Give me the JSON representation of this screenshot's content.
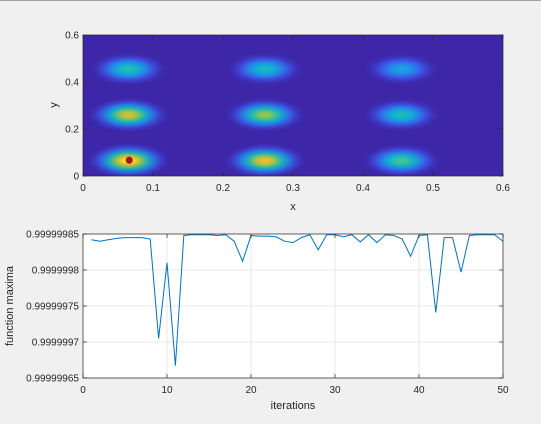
{
  "chart_data": [
    {
      "type": "heatmap",
      "title": "",
      "xlabel": "x",
      "ylabel": "y",
      "xlim": [
        0,
        0.6
      ],
      "ylim": [
        0,
        0.6
      ],
      "xticks": [
        "0",
        "0.1",
        "0.2",
        "0.3",
        "0.4",
        "0.5",
        "0.6"
      ],
      "yticks": [
        "0",
        "0.2",
        "0.4",
        "0.6"
      ],
      "peaks": [
        {
          "x": 0.065,
          "y": 0.065,
          "amplitude": 1.0
        },
        {
          "x": 0.065,
          "y": 0.26,
          "amplitude": 0.85
        },
        {
          "x": 0.065,
          "y": 0.455,
          "amplitude": 0.55
        },
        {
          "x": 0.26,
          "y": 0.065,
          "amplitude": 0.9
        },
        {
          "x": 0.26,
          "y": 0.26,
          "amplitude": 0.75
        },
        {
          "x": 0.26,
          "y": 0.455,
          "amplitude": 0.5
        },
        {
          "x": 0.455,
          "y": 0.065,
          "amplitude": 0.62
        },
        {
          "x": 0.455,
          "y": 0.26,
          "amplitude": 0.52
        },
        {
          "x": 0.455,
          "y": 0.455,
          "amplitude": 0.38
        }
      ],
      "marker": {
        "x": 0.066,
        "y": 0.067,
        "color": "#a2142f"
      },
      "colors": {
        "background": "#3d26a8",
        "peak": "#f9fb0e"
      }
    },
    {
      "type": "line",
      "title": "",
      "xlabel": "iterations",
      "ylabel": "function maxima",
      "xlim": [
        0,
        50
      ],
      "ylim": [
        0.99999965,
        0.99999985
      ],
      "xticks": [
        "0",
        "10",
        "20",
        "30",
        "40",
        "50"
      ],
      "yticks": [
        "0.99999985",
        "0.9999998",
        "0.99999975",
        "0.9999997",
        "0.99999965"
      ],
      "grid": true,
      "color": "#0072bd",
      "x": [
        1,
        2,
        3,
        4,
        5,
        6,
        7,
        8,
        9,
        10,
        11,
        12,
        13,
        14,
        15,
        16,
        17,
        18,
        19,
        20,
        21,
        22,
        23,
        24,
        25,
        26,
        27,
        28,
        29,
        30,
        31,
        32,
        33,
        34,
        35,
        36,
        37,
        38,
        39,
        40,
        41,
        42,
        43,
        44,
        45,
        46,
        47,
        48,
        49,
        50
      ],
      "y": [
        0.999999842,
        0.99999984,
        0.999999842,
        0.999999844,
        0.999999845,
        0.999999845,
        0.999999845,
        0.999999843,
        0.999999705,
        0.99999981,
        0.999999667,
        0.999999848,
        0.999999849,
        0.999999849,
        0.999999849,
        0.999999848,
        0.999999849,
        0.99999984,
        0.999999812,
        0.999999848,
        0.999999847,
        0.999999847,
        0.999999846,
        0.99999984,
        0.999999838,
        0.999999845,
        0.999999849,
        0.999999828,
        0.999999849,
        0.999999849,
        0.999999846,
        0.999999849,
        0.999999839,
        0.999999849,
        0.999999838,
        0.999999849,
        0.999999848,
        0.999999843,
        0.999999819,
        0.999999848,
        0.999999849,
        0.999999741,
        0.999999845,
        0.999999845,
        0.999999797,
        0.999999848,
        0.999999849,
        0.999999849,
        0.999999849,
        0.99999984
      ]
    }
  ]
}
